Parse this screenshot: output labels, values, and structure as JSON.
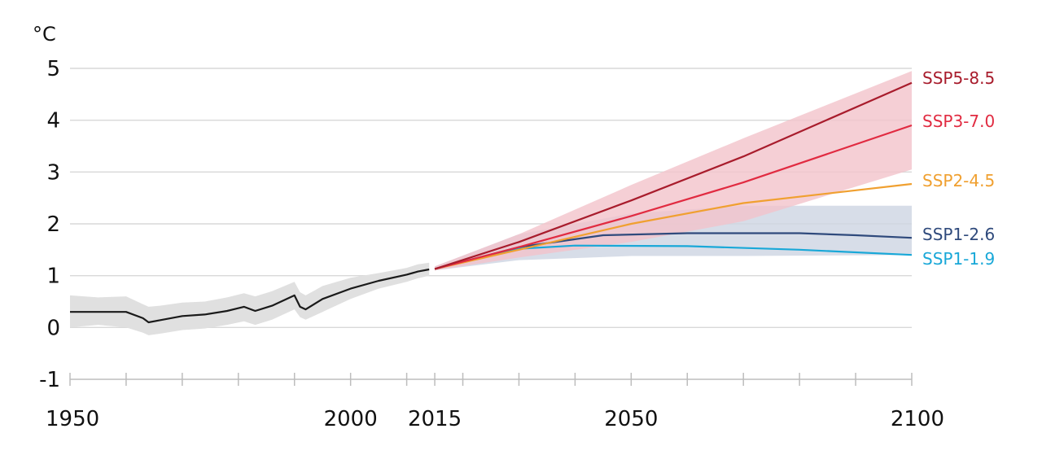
{
  "chart_data": {
    "type": "line",
    "title": "",
    "ylabel": "°C",
    "xlabel": "",
    "xlim": [
      1950,
      2100
    ],
    "ylim": [
      -1,
      5
    ],
    "yticks": [
      -1,
      0,
      1,
      2,
      3,
      4,
      5
    ],
    "xtick_labels": [
      {
        "x": 1950,
        "label": "1950"
      },
      {
        "x": 2000,
        "label": "2000"
      },
      {
        "x": 2015,
        "label": "2015"
      },
      {
        "x": 2050,
        "label": "2050"
      },
      {
        "x": 2100,
        "label": "2100"
      }
    ],
    "xminor_ticks": [
      1950,
      1960,
      1970,
      1980,
      1990,
      2000,
      2010,
      2015,
      2020,
      2030,
      2040,
      2050,
      2060,
      2070,
      2080,
      2090,
      2100
    ],
    "grid": true,
    "historical": {
      "color": "#1a1a1a",
      "band_color": "#e0e0e0",
      "x": [
        1950,
        1955,
        1960,
        1963,
        1964,
        1966,
        1970,
        1974,
        1978,
        1981,
        1983,
        1986,
        1990,
        1991,
        1992,
        1995,
        2000,
        2005,
        2010,
        2012,
        2014
      ],
      "y": [
        0.3,
        0.3,
        0.3,
        0.18,
        0.1,
        0.14,
        0.22,
        0.25,
        0.32,
        0.4,
        0.32,
        0.42,
        0.62,
        0.4,
        0.35,
        0.55,
        0.75,
        0.9,
        1.02,
        1.08,
        1.12
      ],
      "lower": [
        0.0,
        0.05,
        0.0,
        -0.1,
        -0.15,
        -0.12,
        -0.05,
        -0.02,
        0.05,
        0.12,
        0.05,
        0.15,
        0.35,
        0.2,
        0.15,
        0.3,
        0.55,
        0.75,
        0.88,
        0.95,
        1.0
      ],
      "upper": [
        0.62,
        0.58,
        0.6,
        0.45,
        0.4,
        0.42,
        0.48,
        0.5,
        0.58,
        0.66,
        0.6,
        0.7,
        0.88,
        0.68,
        0.62,
        0.8,
        0.96,
        1.05,
        1.15,
        1.22,
        1.25
      ]
    },
    "series": [
      {
        "name": "SSP5-8.5",
        "color": "#a81c2c",
        "x": [
          2015,
          2030,
          2050,
          2070,
          2100
        ],
        "y": [
          1.13,
          1.65,
          2.45,
          3.3,
          4.72
        ]
      },
      {
        "name": "SSP3-7.0",
        "color": "#e12b41",
        "x": [
          2015,
          2030,
          2050,
          2070,
          2100
        ],
        "y": [
          1.13,
          1.55,
          2.15,
          2.8,
          3.9
        ]
      },
      {
        "name": "SSP2-4.5",
        "color": "#f0a030",
        "x": [
          2015,
          2030,
          2050,
          2070,
          2100
        ],
        "y": [
          1.13,
          1.5,
          2.0,
          2.4,
          2.77
        ]
      },
      {
        "name": "SSP1-2.6",
        "color": "#2f4a7c",
        "x": [
          2015,
          2030,
          2045,
          2060,
          2080,
          2090,
          2100
        ],
        "y": [
          1.13,
          1.55,
          1.78,
          1.82,
          1.82,
          1.78,
          1.73
        ]
      },
      {
        "name": "SSP1-1.9",
        "color": "#19a8d8",
        "x": [
          2015,
          2030,
          2040,
          2060,
          2080,
          2100
        ],
        "y": [
          1.13,
          1.52,
          1.58,
          1.57,
          1.5,
          1.4
        ]
      }
    ],
    "bands": [
      {
        "name": "SSP3-7.0 range",
        "color": "#f3c3ca",
        "x": [
          2015,
          2030,
          2050,
          2070,
          2100
        ],
        "lower": [
          1.1,
          1.35,
          1.65,
          2.05,
          3.05
        ],
        "upper": [
          1.18,
          1.8,
          2.75,
          3.65,
          4.95
        ]
      },
      {
        "name": "SSP1-2.6 range",
        "color": "#cdd4e2",
        "x": [
          2015,
          2030,
          2050,
          2070,
          2100
        ],
        "lower": [
          1.1,
          1.3,
          1.38,
          1.38,
          1.4
        ],
        "upper": [
          1.18,
          1.8,
          2.2,
          2.35,
          2.35
        ]
      }
    ]
  }
}
